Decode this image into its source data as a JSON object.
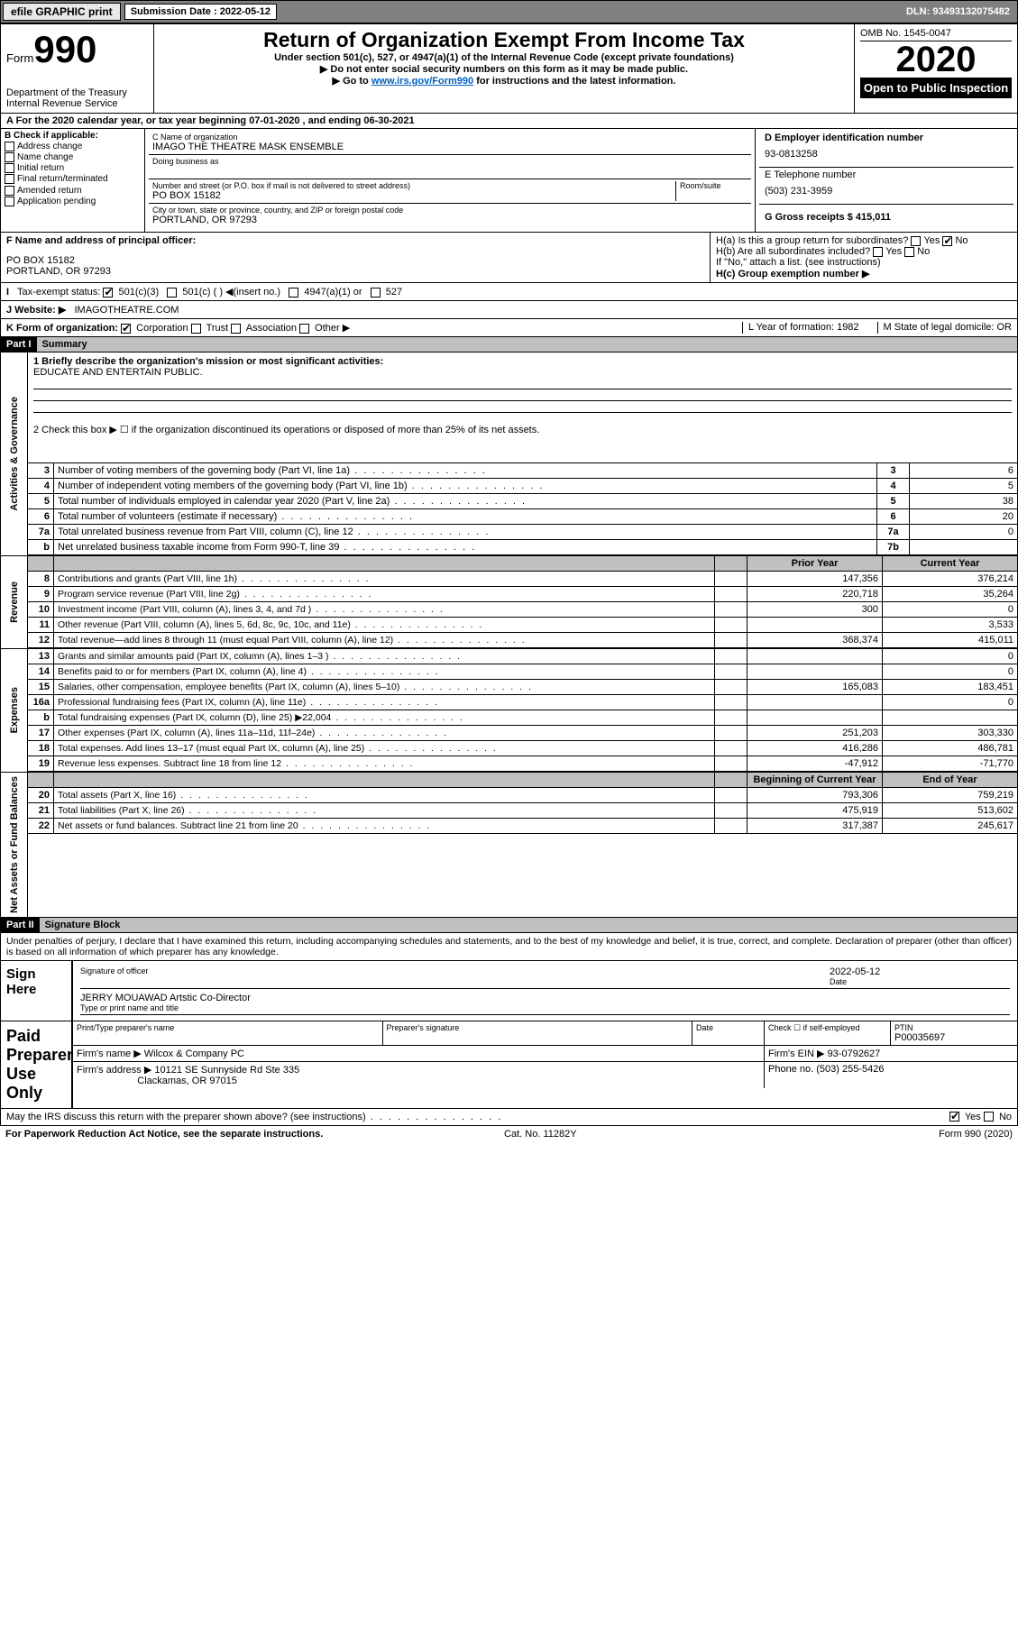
{
  "topbar": {
    "efile_btn": "efile GRAPHIC print",
    "submission_label": "Submission Date : 2022-05-12",
    "dln": "DLN: 93493132075482"
  },
  "header": {
    "form_label": "Form",
    "form_no": "990",
    "dept": "Department of the Treasury Internal Revenue Service",
    "title": "Return of Organization Exempt From Income Tax",
    "subtitle": "Under section 501(c), 527, or 4947(a)(1) of the Internal Revenue Code (except private foundations)",
    "note1": "▶ Do not enter social security numbers on this form as it may be made public.",
    "note2_pre": "▶ Go to ",
    "note2_link": "www.irs.gov/Form990",
    "note2_post": " for instructions and the latest information.",
    "omb": "OMB No. 1545-0047",
    "year": "2020",
    "open": "Open to Public Inspection"
  },
  "row_a": "A For the 2020 calendar year, or tax year beginning 07-01-2020    , and ending 06-30-2021",
  "col_b": {
    "hdr": "B Check if applicable:",
    "items": [
      "Address change",
      "Name change",
      "Initial return",
      "Final return/terminated",
      "Amended return",
      "Application pending"
    ]
  },
  "col_c": {
    "name_lbl": "C Name of organization",
    "name": "IMAGO THE THEATRE MASK ENSEMBLE",
    "dba_lbl": "Doing business as",
    "addr_lbl": "Number and street (or P.O. box if mail is not delivered to street address)",
    "room_lbl": "Room/suite",
    "addr": "PO BOX 15182",
    "city_lbl": "City or town, state or province, country, and ZIP or foreign postal code",
    "city": "PORTLAND, OR  97293"
  },
  "col_d": {
    "ein_lbl": "D Employer identification number",
    "ein": "93-0813258",
    "tel_lbl": "E Telephone number",
    "tel": "(503) 231-3959",
    "gross_lbl": "G Gross receipts $ 415,011"
  },
  "row_f": {
    "officer_lbl": "F  Name and address of principal officer:",
    "officer_addr1": "PO BOX 15182",
    "officer_addr2": "PORTLAND, OR  97293",
    "ha": "H(a)  Is this a group return for subordinates?",
    "hb": "H(b)  Are all subordinates included?",
    "hc_note": "If \"No,\" attach a list. (see instructions)",
    "hc": "H(c)  Group exemption number ▶",
    "yes": "Yes",
    "no": "No"
  },
  "row_i": {
    "lbl": "Tax-exempt status:",
    "opts": [
      "501(c)(3)",
      "501(c) (  ) ◀(insert no.)",
      "4947(a)(1) or",
      "527"
    ]
  },
  "row_j": {
    "lbl": "J  Website: ▶",
    "val": "IMAGOTHEATRE.COM"
  },
  "row_k": {
    "lbl": "K Form of organization:",
    "opts": [
      "Corporation",
      "Trust",
      "Association",
      "Other ▶"
    ],
    "year_lbl": "L Year of formation: 1982",
    "state_lbl": "M State of legal domicile: OR"
  },
  "part1": {
    "hdr": "Part I",
    "title": "Summary",
    "mission_lbl": "1  Briefly describe the organization's mission or most significant activities:",
    "mission": "EDUCATE AND ENTERTAIN PUBLIC.",
    "line2": "2    Check this box ▶ ☐  if the organization discontinued its operations or disposed of more than 25% of its net assets."
  },
  "governance_lines": [
    {
      "n": "3",
      "desc": "Number of voting members of the governing body (Part VI, line 1a)",
      "box": "3",
      "amt": "6"
    },
    {
      "n": "4",
      "desc": "Number of independent voting members of the governing body (Part VI, line 1b)",
      "box": "4",
      "amt": "5"
    },
    {
      "n": "5",
      "desc": "Total number of individuals employed in calendar year 2020 (Part V, line 2a)",
      "box": "5",
      "amt": "38"
    },
    {
      "n": "6",
      "desc": "Total number of volunteers (estimate if necessary)",
      "box": "6",
      "amt": "20"
    },
    {
      "n": "7a",
      "desc": "Total unrelated business revenue from Part VIII, column (C), line 12",
      "box": "7a",
      "amt": "0"
    },
    {
      "n": "b",
      "desc": "Net unrelated business taxable income from Form 990-T, line 39",
      "box": "7b",
      "amt": ""
    }
  ],
  "col_hdrs": {
    "prior": "Prior Year",
    "current": "Current Year"
  },
  "revenue_lines": [
    {
      "n": "8",
      "desc": "Contributions and grants (Part VIII, line 1h)",
      "py": "147,356",
      "cy": "376,214"
    },
    {
      "n": "9",
      "desc": "Program service revenue (Part VIII, line 2g)",
      "py": "220,718",
      "cy": "35,264"
    },
    {
      "n": "10",
      "desc": "Investment income (Part VIII, column (A), lines 3, 4, and 7d )",
      "py": "300",
      "cy": "0"
    },
    {
      "n": "11",
      "desc": "Other revenue (Part VIII, column (A), lines 5, 6d, 8c, 9c, 10c, and 11e)",
      "py": "",
      "cy": "3,533"
    },
    {
      "n": "12",
      "desc": "Total revenue—add lines 8 through 11 (must equal Part VIII, column (A), line 12)",
      "py": "368,374",
      "cy": "415,011"
    }
  ],
  "expense_lines": [
    {
      "n": "13",
      "desc": "Grants and similar amounts paid (Part IX, column (A), lines 1–3 )",
      "py": "",
      "cy": "0"
    },
    {
      "n": "14",
      "desc": "Benefits paid to or for members (Part IX, column (A), line 4)",
      "py": "",
      "cy": "0"
    },
    {
      "n": "15",
      "desc": "Salaries, other compensation, employee benefits (Part IX, column (A), lines 5–10)",
      "py": "165,083",
      "cy": "183,451"
    },
    {
      "n": "16a",
      "desc": "Professional fundraising fees (Part IX, column (A), line 11e)",
      "py": "",
      "cy": "0"
    },
    {
      "n": "b",
      "desc": "Total fundraising expenses (Part IX, column (D), line 25) ▶22,004",
      "py": "",
      "cy": ""
    },
    {
      "n": "17",
      "desc": "Other expenses (Part IX, column (A), lines 11a–11d, 11f–24e)",
      "py": "251,203",
      "cy": "303,330"
    },
    {
      "n": "18",
      "desc": "Total expenses. Add lines 13–17 (must equal Part IX, column (A), line 25)",
      "py": "416,286",
      "cy": "486,781"
    },
    {
      "n": "19",
      "desc": "Revenue less expenses. Subtract line 18 from line 12",
      "py": "-47,912",
      "cy": "-71,770"
    }
  ],
  "col_hdrs2": {
    "prior": "Beginning of Current Year",
    "current": "End of Year"
  },
  "netassets_lines": [
    {
      "n": "20",
      "desc": "Total assets (Part X, line 16)",
      "py": "793,306",
      "cy": "759,219"
    },
    {
      "n": "21",
      "desc": "Total liabilities (Part X, line 26)",
      "py": "475,919",
      "cy": "513,602"
    },
    {
      "n": "22",
      "desc": "Net assets or fund balances. Subtract line 21 from line 20",
      "py": "317,387",
      "cy": "245,617"
    }
  ],
  "vbars": {
    "gov": "Activities & Governance",
    "rev": "Revenue",
    "exp": "Expenses",
    "na": "Net Assets or Fund Balances"
  },
  "part2": {
    "hdr": "Part II",
    "title": "Signature Block",
    "decl": "Under penalties of perjury, I declare that I have examined this return, including accompanying schedules and statements, and to the best of my knowledge and belief, it is true, correct, and complete. Declaration of preparer (other than officer) is based on all information of which preparer has any knowledge."
  },
  "sign": {
    "here": "Sign Here",
    "sig_lbl": "Signature of officer",
    "date_lbl": "Date",
    "date": "2022-05-12",
    "name": "JERRY MOUAWAD Artstic Co-Director",
    "name_lbl": "Type or print name and title"
  },
  "preparer": {
    "label": "Paid Preparer Use Only",
    "print_lbl": "Print/Type preparer's name",
    "sig_lbl": "Preparer's signature",
    "date_lbl": "Date",
    "check_lbl": "Check ☐ if self-employed",
    "ptin_lbl": "PTIN",
    "ptin": "P00035697",
    "firm_lbl": "Firm's name    ▶",
    "firm": "Wilcox & Company PC",
    "ein_lbl": "Firm's EIN ▶",
    "ein": "93-0792627",
    "addr_lbl": "Firm's address ▶",
    "addr1": "10121 SE Sunnyside Rd Ste 335",
    "addr2": "Clackamas, OR  97015",
    "phone_lbl": "Phone no.",
    "phone": "(503) 255-5426"
  },
  "discuss": "May the IRS discuss this return with the preparer shown above? (see instructions)",
  "footer": {
    "l": "For Paperwork Reduction Act Notice, see the separate instructions.",
    "c": "Cat. No. 11282Y",
    "r": "Form 990 (2020)"
  }
}
